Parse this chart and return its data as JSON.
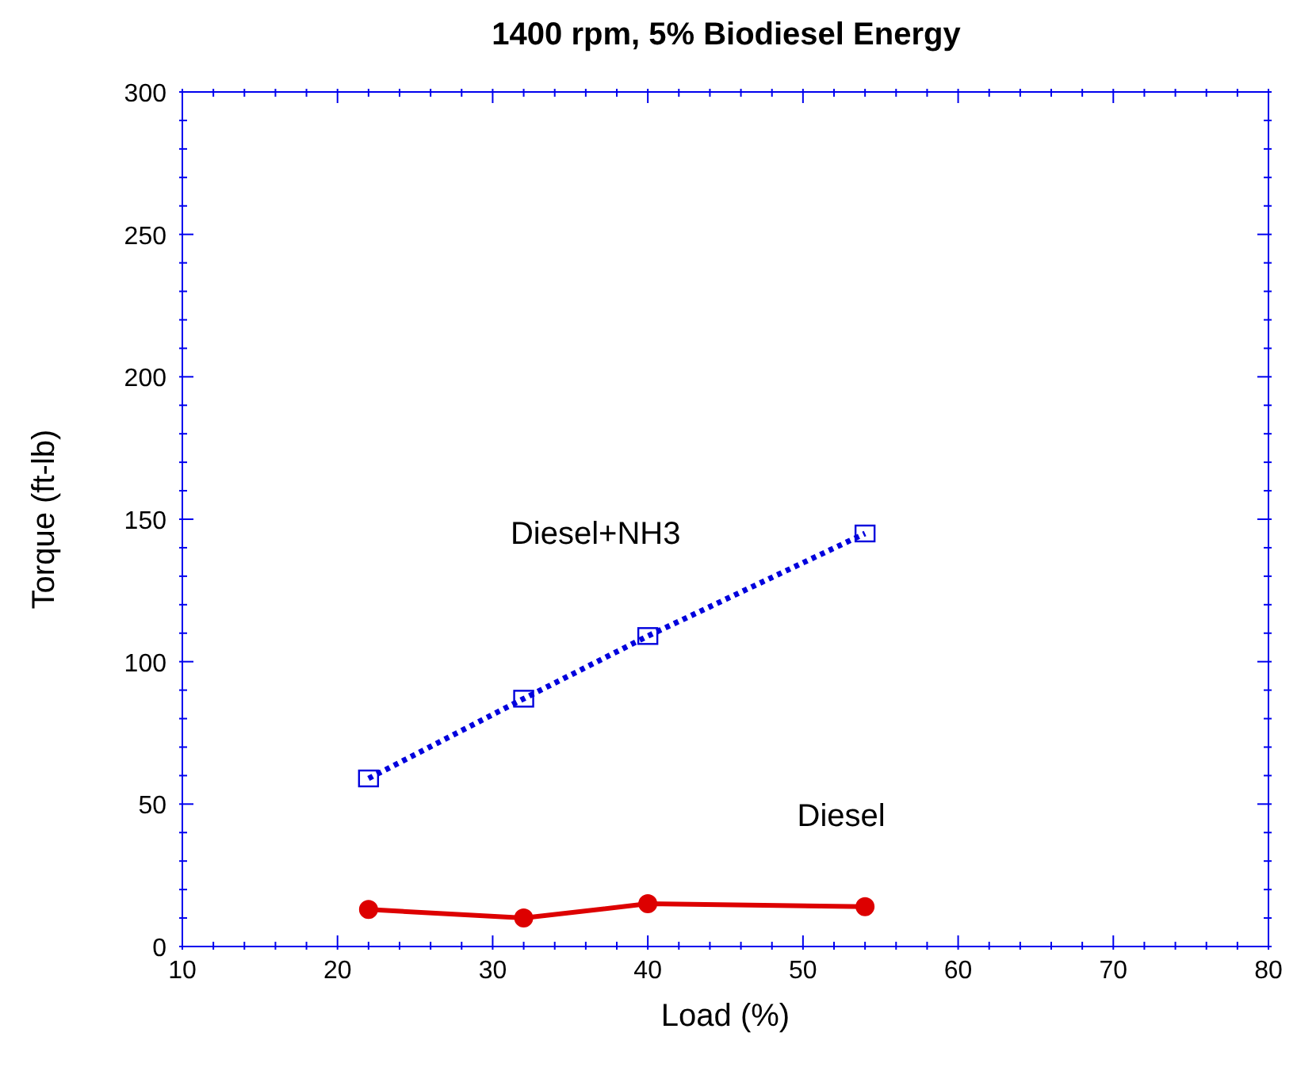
{
  "chart_data": {
    "type": "line",
    "title": "1400 rpm, 5% Biodiesel Energy",
    "xlabel": "Load (%)",
    "ylabel": "Torque (ft-lb)",
    "x": [
      22,
      32,
      40,
      54
    ],
    "series": [
      {
        "name": "Diesel+NH3",
        "color": "#0000dd",
        "values": [
          59,
          87,
          109,
          145
        ],
        "marker": "square",
        "line_style": "dotted"
      },
      {
        "name": "Diesel",
        "color": "#dd0000",
        "values": [
          13,
          10,
          15,
          14
        ],
        "marker": "circle",
        "line_style": "solid"
      }
    ],
    "xlim": [
      10,
      80
    ],
    "xticks": [
      10,
      {
        "value": 12,
        "label": null
      },
      {
        "value": 14,
        "label": null
      },
      {
        "value": 16,
        "label": null
      },
      {
        "value": 18,
        "label": null
      },
      20,
      {
        "value": 22,
        "label": null
      },
      {
        "value": 24,
        "label": null
      },
      {
        "value": 26,
        "label": null
      },
      {
        "value": 28,
        "label": null
      },
      30,
      {
        "value": 32,
        "label": null
      },
      {
        "value": 34,
        "label": null
      },
      {
        "value": 36,
        "label": null
      },
      {
        "value": 38,
        "label": null
      },
      40,
      {
        "value": 42,
        "label": null
      },
      {
        "value": 44,
        "label": null
      },
      {
        "value": 46,
        "label": null
      },
      {
        "value": 48,
        "label": null
      },
      50,
      {
        "value": 52,
        "label": null
      },
      {
        "value": 54,
        "label": null
      },
      {
        "value": 56,
        "label": null
      },
      {
        "value": 58,
        "label": null
      },
      60,
      {
        "value": 62,
        "label": null
      },
      {
        "value": 64,
        "label": null
      },
      {
        "value": 66,
        "label": null
      },
      {
        "value": 68,
        "label": null
      },
      70,
      {
        "value": 72,
        "label": null
      },
      {
        "value": 74,
        "label": null
      },
      {
        "value": 76,
        "label": null
      },
      {
        "value": 78,
        "label": null
      },
      80
    ],
    "ylim": [
      0,
      300
    ],
    "yticks": [
      0,
      {
        "value": 10,
        "label": null
      },
      {
        "value": 20,
        "label": null
      },
      {
        "value": 30,
        "label": null
      },
      {
        "value": 40,
        "label": null
      },
      50,
      {
        "value": 60,
        "label": null
      },
      {
        "value": 70,
        "label": null
      },
      {
        "value": 80,
        "label": null
      },
      {
        "value": 90,
        "label": null
      },
      100,
      {
        "value": 110,
        "label": null
      },
      {
        "value": 120,
        "label": null
      },
      {
        "value": 130,
        "label": null
      },
      {
        "value": 140,
        "label": null
      },
      150,
      {
        "value": 160,
        "label": null
      },
      {
        "value": 170,
        "label": null
      },
      {
        "value": 180,
        "label": null
      },
      {
        "value": 190,
        "label": null
      },
      200,
      {
        "value": 210,
        "label": null
      },
      {
        "value": 220,
        "label": null
      },
      {
        "value": 230,
        "label": null
      },
      {
        "value": 240,
        "label": null
      },
      250,
      {
        "value": 260,
        "label": null
      },
      {
        "value": 270,
        "label": null
      },
      {
        "value": 280,
        "label": null
      },
      {
        "value": 290,
        "label": null
      },
      300
    ],
    "grid": false,
    "legend": false
  }
}
